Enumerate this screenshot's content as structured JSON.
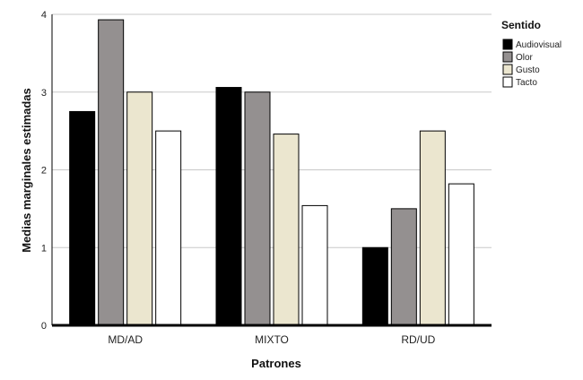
{
  "chart_data": {
    "type": "bar",
    "title": "",
    "xlabel": "Patrones",
    "ylabel": "Medias marginales estimadas",
    "categories": [
      "MD/AD",
      "MIXTO",
      "RD/UD"
    ],
    "ylim": [
      0,
      4.0
    ],
    "yticks": [
      0,
      1,
      2,
      3,
      4
    ],
    "grid": "horizontal",
    "legend": {
      "title": "Sentido",
      "placement": "top-right"
    },
    "series": [
      {
        "name": "Audiovisual",
        "color": "#000000",
        "values": [
          2.75,
          3.06,
          1.0
        ]
      },
      {
        "name": "Olor",
        "color": "#949090",
        "values": [
          3.93,
          3.0,
          1.5
        ]
      },
      {
        "name": "Gusto",
        "color": "#ebe6cf",
        "values": [
          3.0,
          2.46,
          2.5
        ]
      },
      {
        "name": "Tacto",
        "color": "#ffffff",
        "values": [
          2.5,
          1.54,
          1.82
        ]
      }
    ]
  }
}
